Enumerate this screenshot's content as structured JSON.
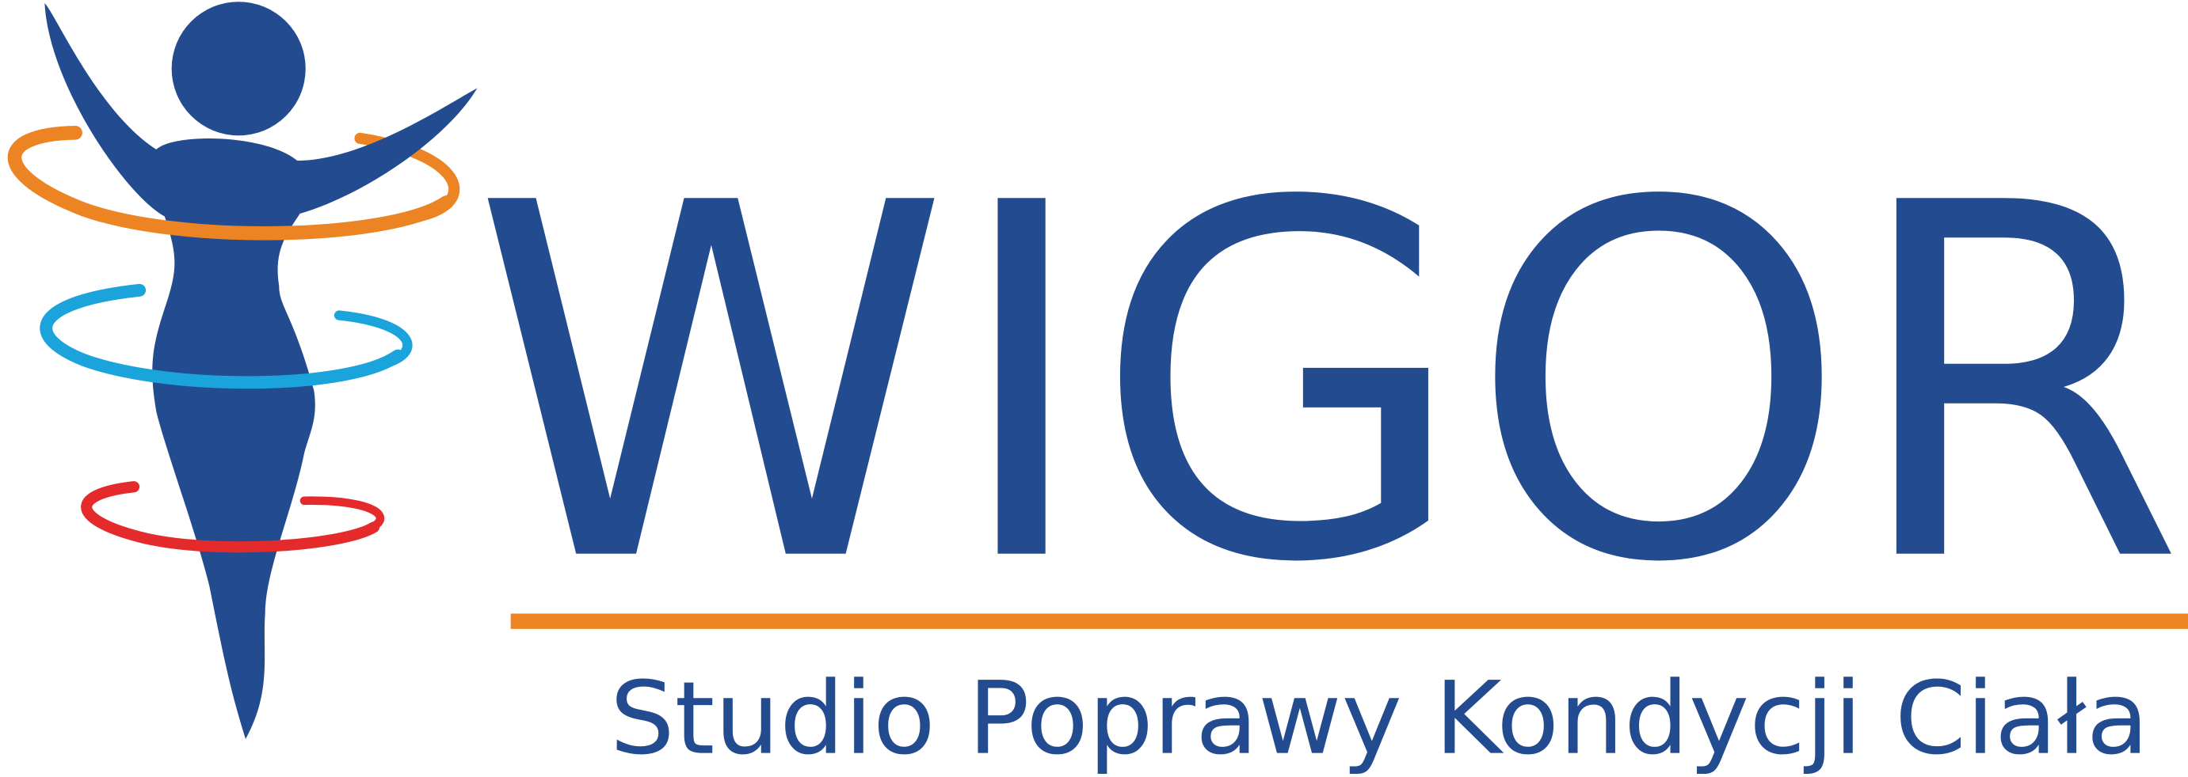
{
  "logo": {
    "name": "WIGOR",
    "tagline": "Studio Poprawy Kondycji Ciała"
  }
}
